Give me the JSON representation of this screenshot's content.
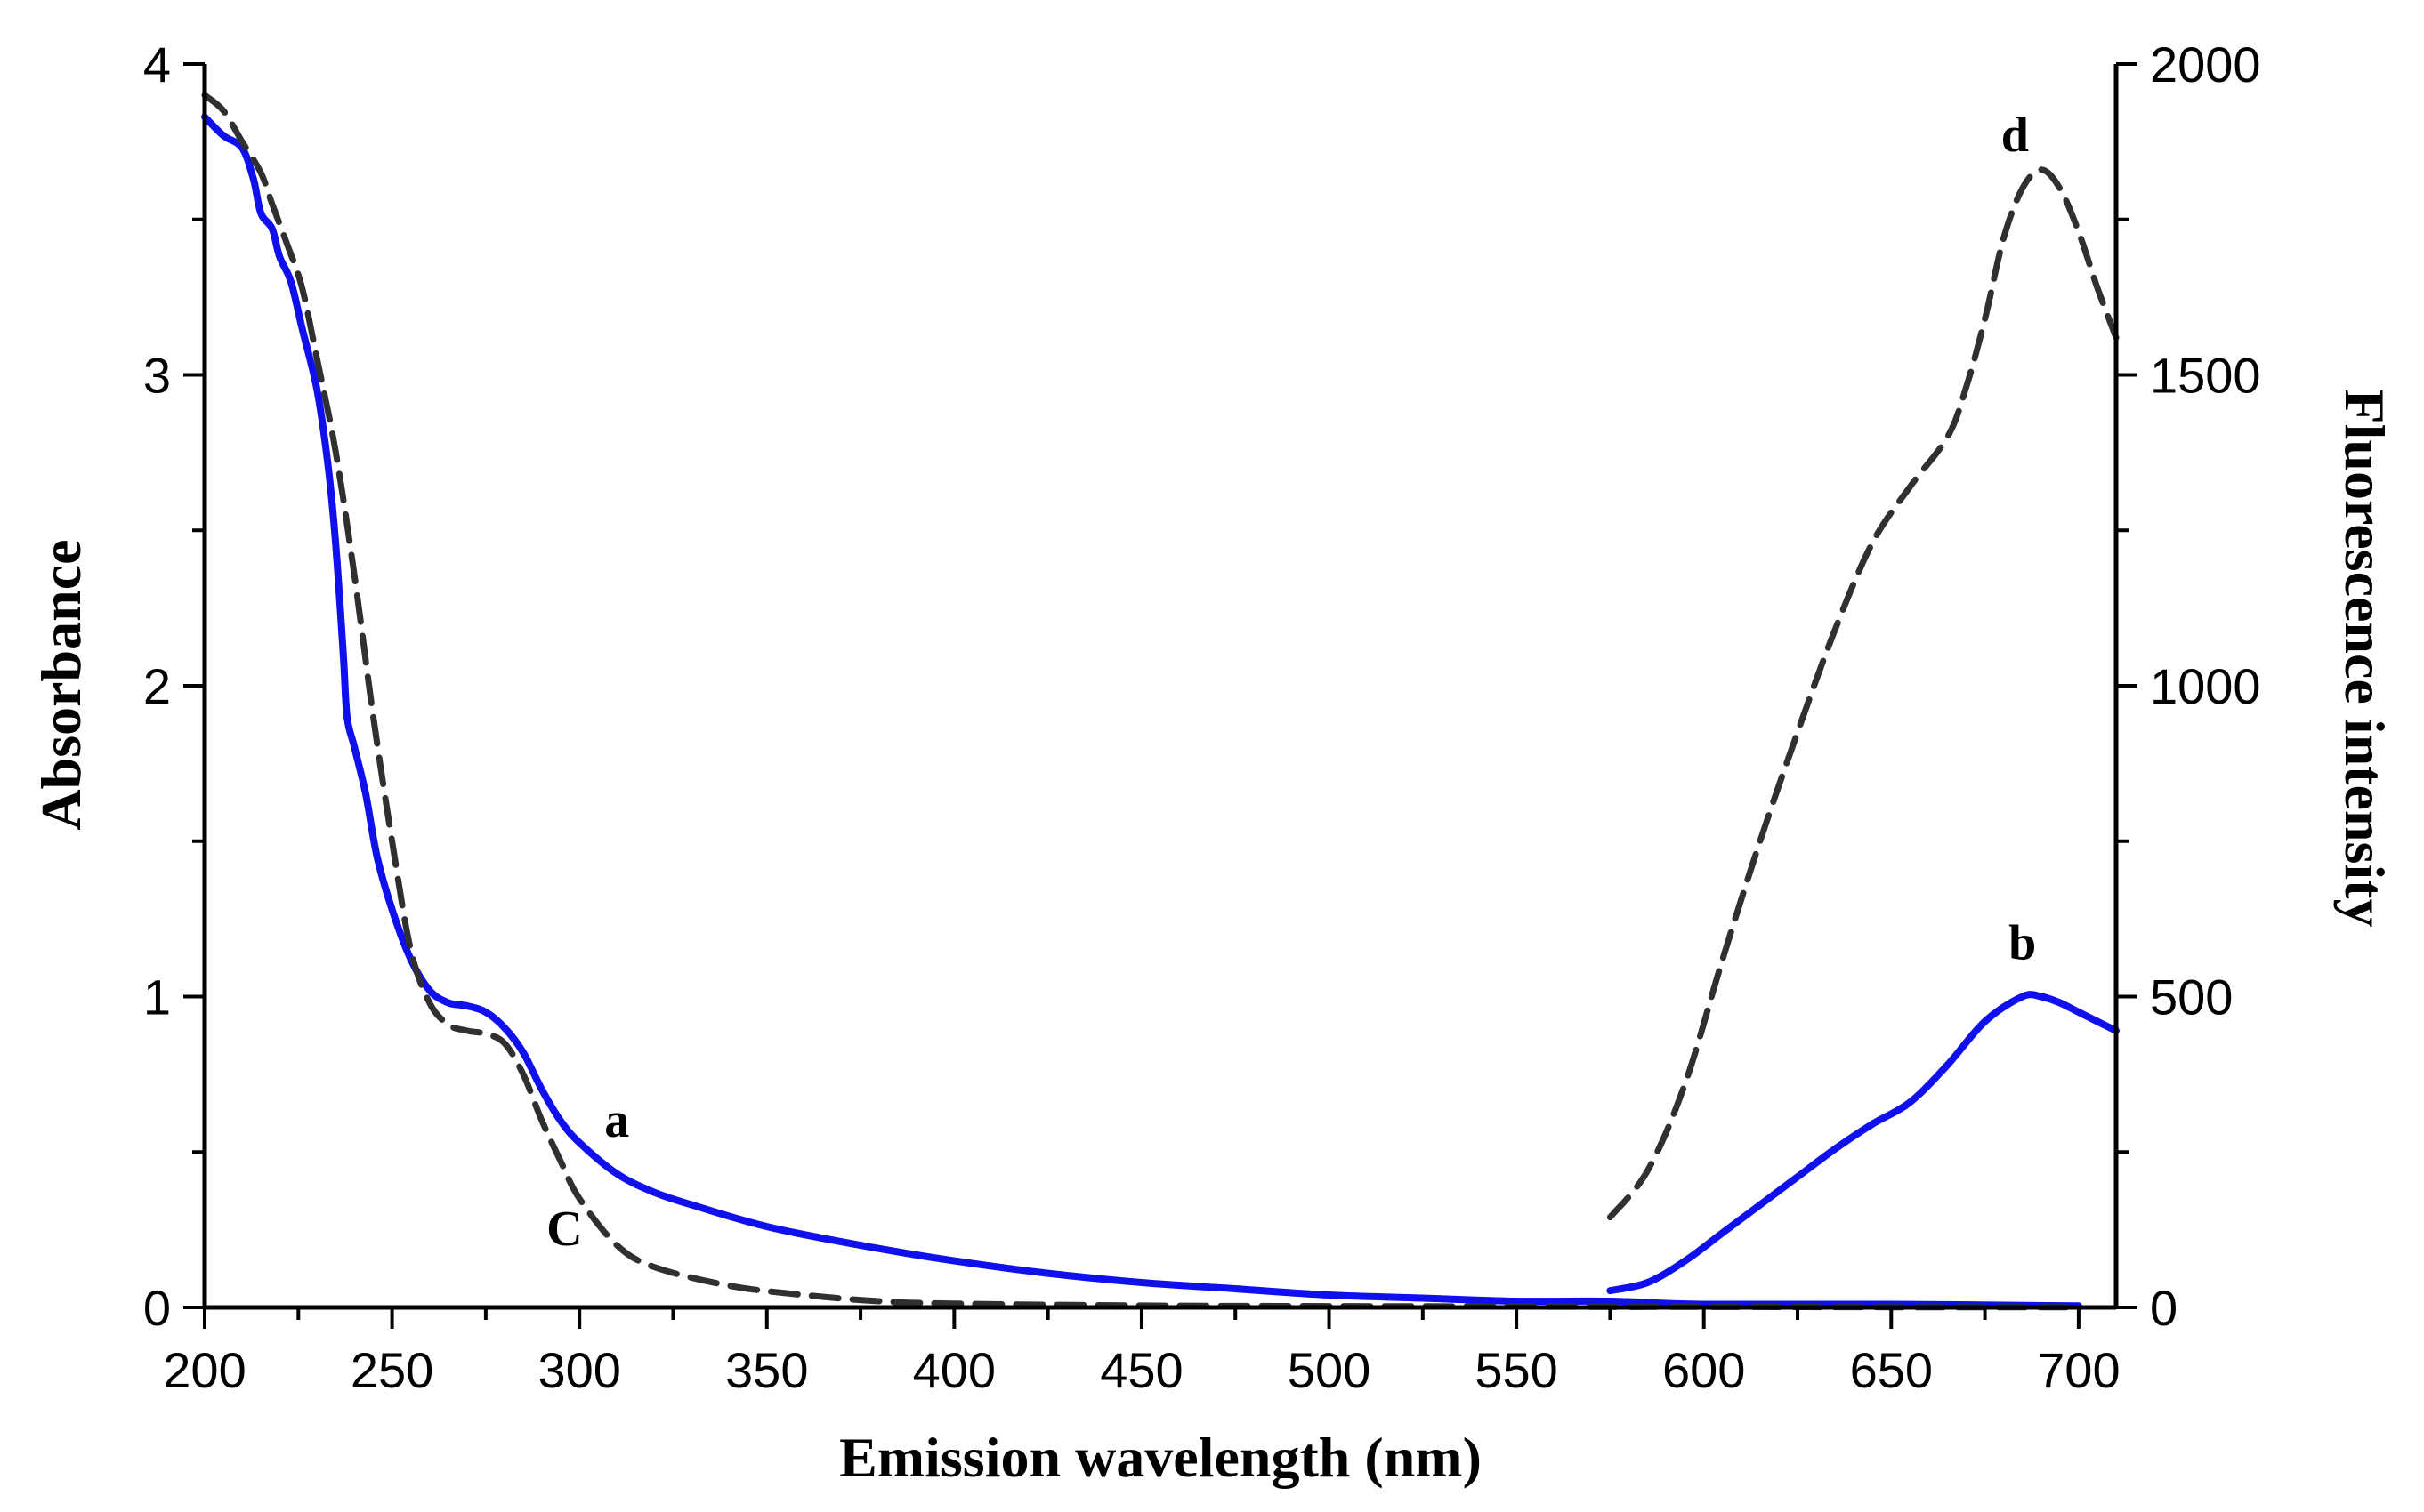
{
  "chart_data": {
    "type": "line",
    "title": "",
    "xlabel": "Emission wavelength (nm)",
    "ylabel_left": "Absorbance",
    "ylabel_right": "Fluorescence intensity",
    "xlim": [
      200,
      710
    ],
    "ylim_left": [
      0,
      4
    ],
    "ylim_right": [
      0,
      2000
    ],
    "xticks": [
      200,
      250,
      300,
      350,
      400,
      450,
      500,
      550,
      600,
      650,
      700
    ],
    "yticks_left": [
      0,
      1,
      2,
      3,
      4
    ],
    "yticks_right": [
      0,
      500,
      1000,
      1500,
      2000
    ],
    "series": [
      {
        "name": "a",
        "axis": "left",
        "style": "solid",
        "color": "#1010ee",
        "label": "a",
        "label_at": [
          310,
          0.55
        ],
        "x": [
          200,
          205,
          210,
          213,
          215,
          218,
          220,
          223,
          226,
          230,
          233,
          235,
          237,
          238,
          240,
          243,
          246,
          250,
          255,
          260,
          265,
          270,
          275,
          280,
          285,
          290,
          295,
          300,
          310,
          320,
          330,
          350,
          375,
          400,
          425,
          450,
          475,
          500,
          525,
          550,
          575,
          600,
          650,
          700
        ],
        "y": [
          3.83,
          3.77,
          3.73,
          3.63,
          3.52,
          3.47,
          3.38,
          3.3,
          3.15,
          2.95,
          2.7,
          2.45,
          2.1,
          1.9,
          1.8,
          1.65,
          1.45,
          1.28,
          1.12,
          1.02,
          0.98,
          0.97,
          0.95,
          0.9,
          0.82,
          0.7,
          0.6,
          0.53,
          0.43,
          0.37,
          0.33,
          0.26,
          0.2,
          0.15,
          0.11,
          0.08,
          0.06,
          0.04,
          0.03,
          0.02,
          0.02,
          0.01,
          0.01,
          0.005
        ]
      },
      {
        "name": "c",
        "axis": "left",
        "style": "dashed",
        "color": "#303030",
        "label": "C",
        "label_at": [
          296,
          0.2
        ],
        "x": [
          200,
          205,
          210,
          215,
          218,
          222,
          226,
          230,
          235,
          240,
          245,
          250,
          255,
          260,
          265,
          270,
          275,
          280,
          285,
          290,
          295,
          300,
          310,
          320,
          340,
          360,
          380,
          400,
          450,
          500,
          550,
          575,
          600,
          650,
          700
        ],
        "y": [
          3.9,
          3.85,
          3.75,
          3.65,
          3.55,
          3.42,
          3.28,
          3.05,
          2.75,
          2.35,
          1.9,
          1.5,
          1.15,
          0.98,
          0.91,
          0.89,
          0.88,
          0.85,
          0.75,
          0.6,
          0.47,
          0.35,
          0.2,
          0.13,
          0.07,
          0.04,
          0.02,
          0.012,
          0.006,
          0.004,
          0.003,
          0.002,
          0.002,
          0.001,
          0.001
        ]
      },
      {
        "name": "b",
        "axis": "right",
        "style": "solid",
        "color": "#1010ee",
        "label": "b",
        "label_at": [
          685,
          560
        ],
        "x": [
          575,
          585,
          595,
          605,
          615,
          625,
          635,
          645,
          655,
          665,
          675,
          685,
          690,
          695,
          700,
          705,
          710
        ],
        "y": [
          27,
          40,
          75,
          120,
          165,
          210,
          255,
          295,
          330,
          390,
          460,
          500,
          500,
          490,
          475,
          460,
          445
        ]
      },
      {
        "name": "d",
        "axis": "right",
        "style": "dashed",
        "color": "#303030",
        "label": "d",
        "label_at": [
          683,
          1860
        ],
        "x": [
          575,
          585,
          595,
          605,
          615,
          625,
          635,
          645,
          655,
          665,
          670,
          675,
          680,
          685,
          690,
          695,
          700,
          705,
          710
        ],
        "y": [
          145,
          220,
          360,
          560,
          750,
          925,
          1090,
          1230,
          1320,
          1400,
          1480,
          1590,
          1720,
          1800,
          1830,
          1800,
          1730,
          1640,
          1560
        ]
      }
    ]
  }
}
